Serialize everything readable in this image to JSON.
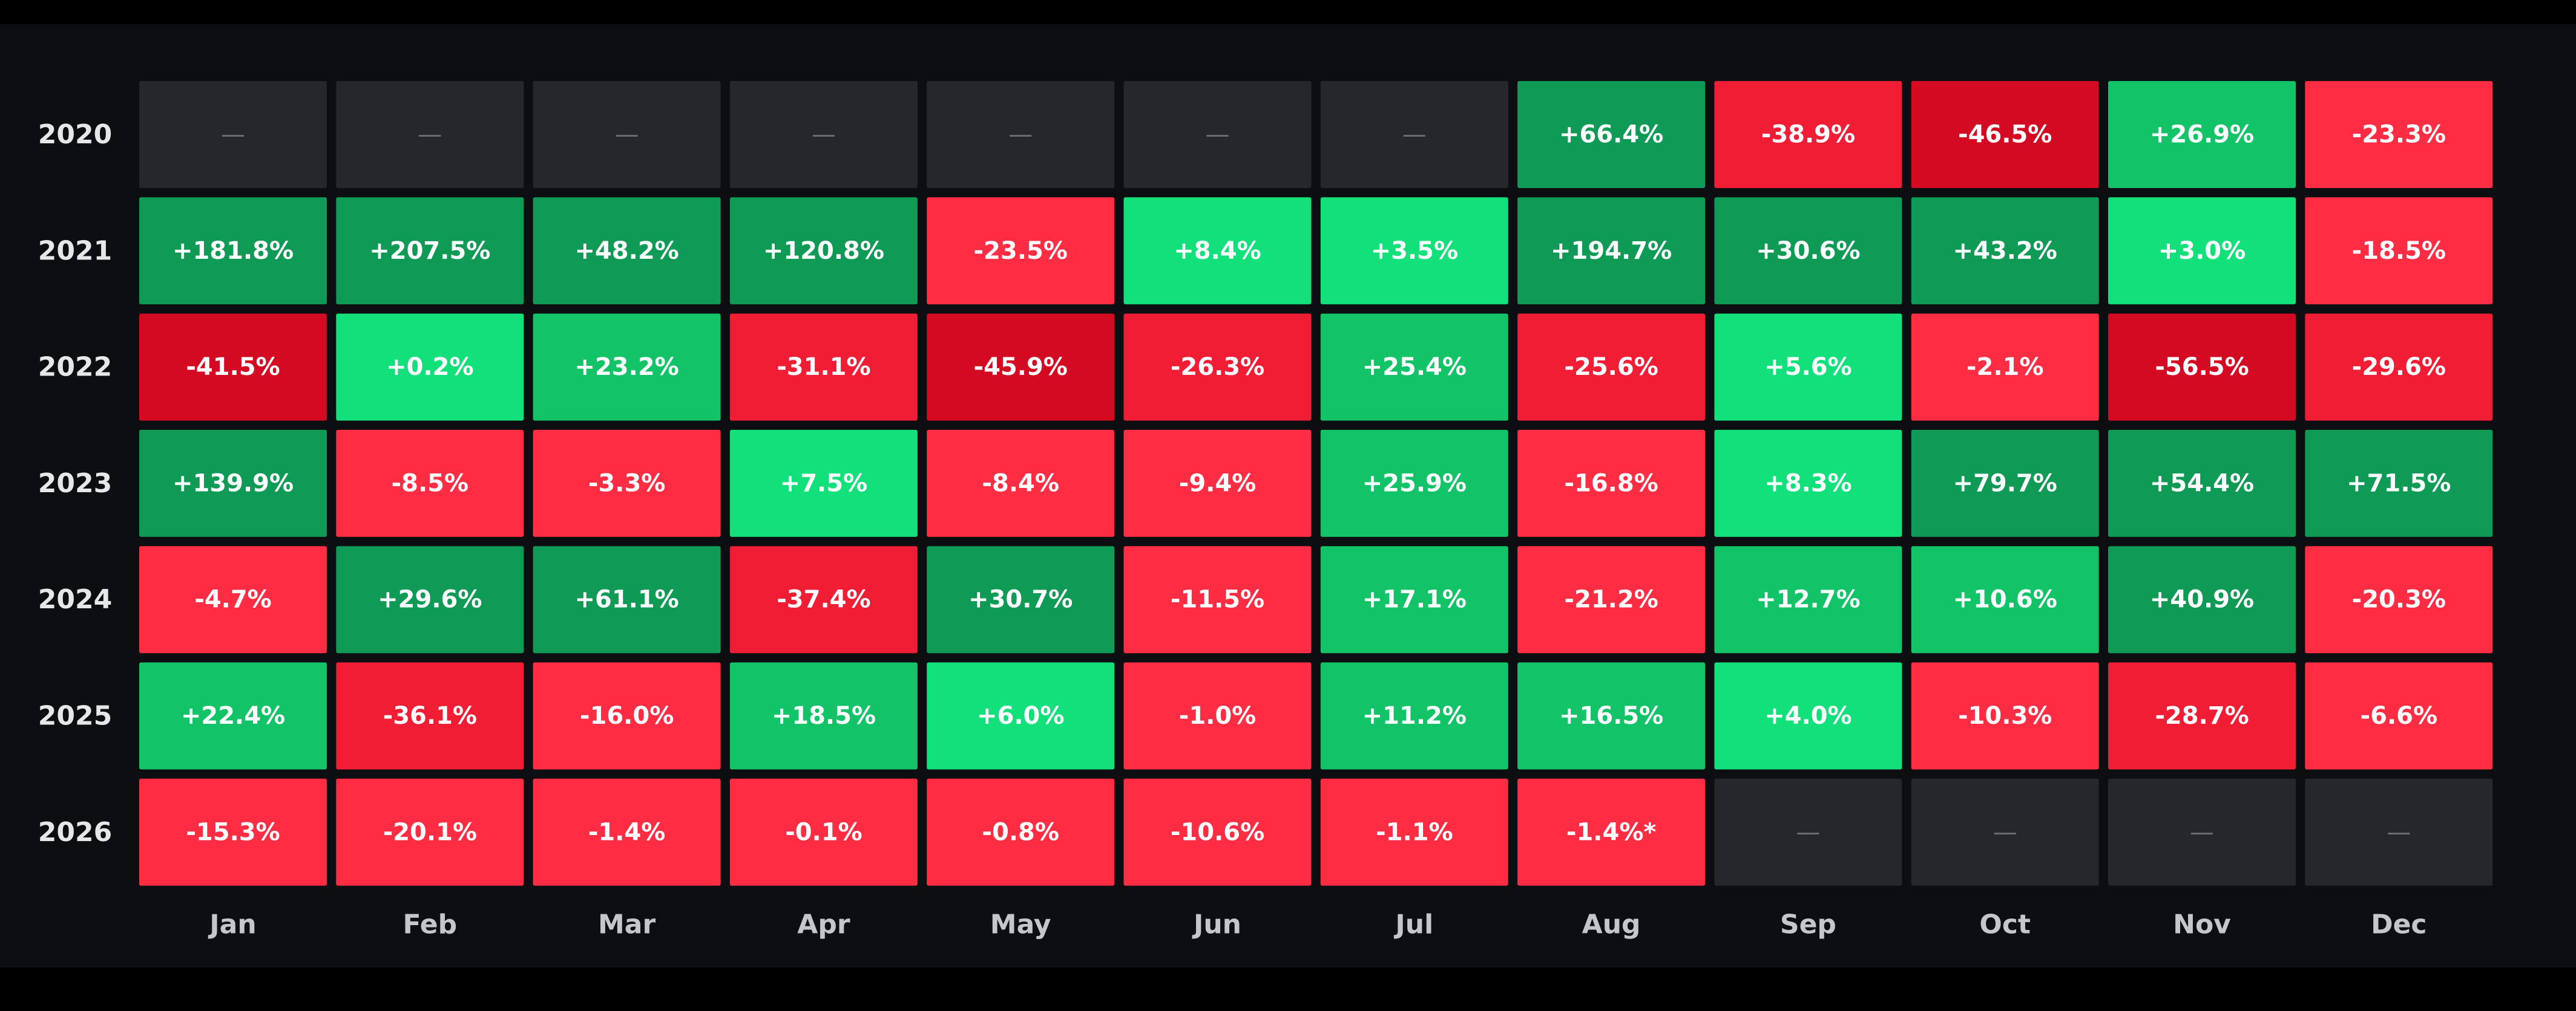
{
  "chart_data": {
    "type": "heatmap",
    "title": "",
    "xlabel": "",
    "ylabel": "",
    "rows": [
      "2020",
      "2021",
      "2022",
      "2023",
      "2024",
      "2025",
      "2026"
    ],
    "columns": [
      "Jan",
      "Feb",
      "Mar",
      "Apr",
      "May",
      "Jun",
      "Jul",
      "Aug",
      "Sep",
      "Oct",
      "Nov",
      "Dec"
    ],
    "values": [
      [
        null,
        null,
        null,
        null,
        null,
        null,
        null,
        66.4,
        -38.9,
        -46.5,
        26.9,
        -23.3
      ],
      [
        181.8,
        207.5,
        48.2,
        120.8,
        -23.5,
        8.4,
        3.5,
        194.7,
        30.6,
        43.2,
        3.0,
        -18.5
      ],
      [
        -41.5,
        0.2,
        23.2,
        -31.1,
        -45.9,
        -26.3,
        25.4,
        -25.6,
        5.6,
        -2.1,
        -56.5,
        -29.6
      ],
      [
        139.9,
        -8.5,
        -3.3,
        7.5,
        -8.4,
        -9.4,
        25.9,
        -16.8,
        8.3,
        79.7,
        54.4,
        71.5
      ],
      [
        -4.7,
        29.6,
        61.1,
        -37.4,
        30.7,
        -11.5,
        17.1,
        -21.2,
        12.7,
        10.6,
        40.9,
        -20.3
      ],
      [
        22.4,
        -36.1,
        -16.0,
        18.5,
        6.0,
        -1.0,
        11.2,
        16.5,
        4.0,
        -10.3,
        -28.7,
        -6.6
      ],
      [
        -15.3,
        -20.1,
        -1.4,
        -0.1,
        -0.8,
        -10.6,
        -1.1,
        -1.4,
        null,
        null,
        null,
        null
      ]
    ],
    "labels": [
      [
        "—",
        "—",
        "—",
        "—",
        "—",
        "—",
        "—",
        "+66.4%",
        "-38.9%",
        "-46.5%",
        "+26.9%",
        "-23.3%"
      ],
      [
        "+181.8%",
        "+207.5%",
        "+48.2%",
        "+120.8%",
        "-23.5%",
        "+8.4%",
        "+3.5%",
        "+194.7%",
        "+30.6%",
        "+43.2%",
        "+3.0%",
        "-18.5%"
      ],
      [
        "-41.5%",
        "+0.2%",
        "+23.2%",
        "-31.1%",
        "-45.9%",
        "-26.3%",
        "+25.4%",
        "-25.6%",
        "+5.6%",
        "-2.1%",
        "-56.5%",
        "-29.6%"
      ],
      [
        "+139.9%",
        "-8.5%",
        "-3.3%",
        "+7.5%",
        "-8.4%",
        "-9.4%",
        "+25.9%",
        "-16.8%",
        "+8.3%",
        "+79.7%",
        "+54.4%",
        "+71.5%"
      ],
      [
        "-4.7%",
        "+29.6%",
        "+61.1%",
        "-37.4%",
        "+30.7%",
        "-11.5%",
        "+17.1%",
        "-21.2%",
        "+12.7%",
        "+10.6%",
        "+40.9%",
        "-20.3%"
      ],
      [
        "+22.4%",
        "-36.1%",
        "-16.0%",
        "+18.5%",
        "+6.0%",
        "-1.0%",
        "+11.2%",
        "+16.5%",
        "+4.0%",
        "-10.3%",
        "-28.7%",
        "-6.6%"
      ],
      [
        "-15.3%",
        "-20.1%",
        "-1.4%",
        "-0.1%",
        "-0.8%",
        "-10.6%",
        "-1.1%",
        "-1.4%*",
        "—",
        "—",
        "—",
        "—"
      ]
    ],
    "colors": {
      "background": "#0c0e11",
      "empty_cell": "#26272a",
      "empty_text": "#6b6e73",
      "positive_light": "#12e07a",
      "positive_mid": "#12c467",
      "positive_dark": "#0f9a55",
      "negative_light": "#ff2d43",
      "negative_mid": "#f01d35",
      "negative_dark": "#d40a22",
      "cell_text": "#ffffff",
      "row_label": "#e6e7e9",
      "column_label": "#c4c6ca"
    },
    "legend": "none",
    "grid": false
  }
}
